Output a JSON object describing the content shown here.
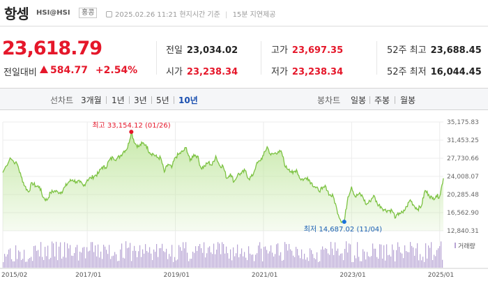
{
  "header": {
    "title": "항셍",
    "code": "HSI@HSI",
    "market": "홍콩",
    "datetime": "2025.02.26 11:21 현지시간 기준",
    "delay": "15분 지연제공"
  },
  "quote": {
    "price": "23,618.79",
    "change_label": "전일대비",
    "change": "584.77",
    "change_pct": "+2.54%",
    "direction": "up",
    "up_color": "#e5172a"
  },
  "stats": [
    {
      "label": "전일",
      "value": "23,034.02",
      "color": "#222222"
    },
    {
      "label": "고가",
      "value": "23,697.35",
      "color": "#e5172a"
    },
    {
      "label": "52주 최고",
      "value": "23,688.45",
      "color": "#222222"
    },
    {
      "label": "시가",
      "value": "23,238.34",
      "color": "#e5172a"
    },
    {
      "label": "저가",
      "value": "23,238.34",
      "color": "#e5172a"
    },
    {
      "label": "52주 최저",
      "value": "16,044.45",
      "color": "#222222"
    }
  ],
  "tabs": {
    "line_label": "선차트",
    "line_periods": [
      "3개월",
      "1년",
      "3년",
      "5년",
      "10년"
    ],
    "active_period": "10년",
    "candle_label": "봉차트",
    "candle_periods": [
      "일봉",
      "주봉",
      "월봉"
    ]
  },
  "chart_data": {
    "type": "area",
    "x_start": "2015/02",
    "x_end": "2025/02",
    "y_ticks": [
      "35,175.83",
      "31,453.25",
      "27,730.66",
      "24,008.07",
      "20,285.48",
      "16,562.90",
      "12,840.31"
    ],
    "ylim": [
      12840.31,
      35175.83
    ],
    "x_tick_labels": [
      "2015/02",
      "2017/01",
      "2019/01",
      "2021/01",
      "2023/01",
      "2025/01"
    ],
    "x_tick_dates": [
      "2015/02",
      "2017/01",
      "2019/01",
      "2021/01",
      "2023/01",
      "2025/01"
    ],
    "max_annotation": "최고 33,154.12 (01/26)",
    "max_date": "2018/01",
    "max_value": 33154.12,
    "min_annotation": "최저 14,687.02 (11/04)",
    "min_date": "2022/11",
    "min_value": 14687.02,
    "volume_label": "거래량",
    "line_color": "#7cc242",
    "fill_color": "#c5e8a6",
    "volume_color": "#b7a4d4",
    "series": [
      {
        "values": [
          [
            "2015/02",
            24800
          ],
          [
            "2015/04",
            27800
          ],
          [
            "2015/06",
            26400
          ],
          [
            "2015/07",
            24000
          ],
          [
            "2015/08",
            22000
          ],
          [
            "2015/09",
            20800
          ],
          [
            "2015/10",
            22700
          ],
          [
            "2015/11",
            22000
          ],
          [
            "2015/12",
            21900
          ],
          [
            "2016/01",
            19700
          ],
          [
            "2016/02",
            19100
          ],
          [
            "2016/03",
            20700
          ],
          [
            "2016/04",
            21000
          ],
          [
            "2016/05",
            20800
          ],
          [
            "2016/06",
            20800
          ],
          [
            "2016/07",
            21900
          ],
          [
            "2016/08",
            22900
          ],
          [
            "2016/09",
            23300
          ],
          [
            "2016/10",
            22900
          ],
          [
            "2016/11",
            22800
          ],
          [
            "2016/12",
            22000
          ],
          [
            "2017/01",
            23300
          ],
          [
            "2017/02",
            23700
          ],
          [
            "2017/03",
            24100
          ],
          [
            "2017/04",
            24600
          ],
          [
            "2017/05",
            25900
          ],
          [
            "2017/06",
            25800
          ],
          [
            "2017/07",
            27300
          ],
          [
            "2017/08",
            27900
          ],
          [
            "2017/09",
            27600
          ],
          [
            "2017/10",
            28200
          ],
          [
            "2017/11",
            29200
          ],
          [
            "2017/12",
            29900
          ],
          [
            "2018/01",
            33154.12
          ],
          [
            "2018/02",
            30800
          ],
          [
            "2018/03",
            30100
          ],
          [
            "2018/04",
            30800
          ],
          [
            "2018/05",
            30500
          ],
          [
            "2018/06",
            28900
          ],
          [
            "2018/07",
            28600
          ],
          [
            "2018/08",
            27900
          ],
          [
            "2018/09",
            27800
          ],
          [
            "2018/10",
            24900
          ],
          [
            "2018/11",
            26500
          ],
          [
            "2018/12",
            25800
          ],
          [
            "2019/01",
            27900
          ],
          [
            "2019/02",
            28600
          ],
          [
            "2019/03",
            29100
          ],
          [
            "2019/04",
            29900
          ],
          [
            "2019/05",
            27200
          ],
          [
            "2019/06",
            28500
          ],
          [
            "2019/07",
            28200
          ],
          [
            "2019/08",
            25700
          ],
          [
            "2019/09",
            26100
          ],
          [
            "2019/10",
            26900
          ],
          [
            "2019/11",
            26300
          ],
          [
            "2019/12",
            28200
          ],
          [
            "2020/01",
            26300
          ],
          [
            "2020/02",
            26100
          ],
          [
            "2020/03",
            23600
          ],
          [
            "2020/04",
            24600
          ],
          [
            "2020/05",
            22900
          ],
          [
            "2020/06",
            24400
          ],
          [
            "2020/07",
            24600
          ],
          [
            "2020/08",
            25200
          ],
          [
            "2020/09",
            23500
          ],
          [
            "2020/10",
            24100
          ],
          [
            "2020/11",
            26300
          ],
          [
            "2020/12",
            27200
          ],
          [
            "2021/01",
            28300
          ],
          [
            "2021/02",
            30100
          ],
          [
            "2021/03",
            28400
          ],
          [
            "2021/04",
            28700
          ],
          [
            "2021/05",
            29100
          ],
          [
            "2021/06",
            28800
          ],
          [
            "2021/07",
            25900
          ],
          [
            "2021/08",
            25500
          ],
          [
            "2021/09",
            24600
          ],
          [
            "2021/10",
            25400
          ],
          [
            "2021/11",
            23500
          ],
          [
            "2021/12",
            23400
          ],
          [
            "2022/01",
            23800
          ],
          [
            "2022/02",
            22700
          ],
          [
            "2022/03",
            21900
          ],
          [
            "2022/04",
            21100
          ],
          [
            "2022/05",
            21400
          ],
          [
            "2022/06",
            21900
          ],
          [
            "2022/07",
            20200
          ],
          [
            "2022/08",
            19900
          ],
          [
            "2022/09",
            17200
          ],
          [
            "2022/10",
            15000
          ],
          [
            "2022/11",
            14687.02
          ],
          [
            "2022/12",
            19800
          ],
          [
            "2023/01",
            21900
          ],
          [
            "2023/02",
            19800
          ],
          [
            "2023/03",
            20400
          ],
          [
            "2023/04",
            19900
          ],
          [
            "2023/05",
            18200
          ],
          [
            "2023/06",
            18900
          ],
          [
            "2023/07",
            20100
          ],
          [
            "2023/08",
            18400
          ],
          [
            "2023/09",
            17800
          ],
          [
            "2023/10",
            17100
          ],
          [
            "2023/11",
            17000
          ],
          [
            "2023/12",
            17000
          ],
          [
            "2024/01",
            15500
          ],
          [
            "2024/02",
            16500
          ],
          [
            "2024/03",
            16500
          ],
          [
            "2024/04",
            17800
          ],
          [
            "2024/05",
            19200
          ],
          [
            "2024/06",
            18000
          ],
          [
            "2024/07",
            17300
          ],
          [
            "2024/08",
            17900
          ],
          [
            "2024/09",
            21100
          ],
          [
            "2024/10",
            20300
          ],
          [
            "2024/11",
            19400
          ],
          [
            "2024/12",
            20000
          ],
          [
            "2025/01",
            19900
          ],
          [
            "2025/02",
            23618.79
          ]
        ]
      }
    ]
  }
}
